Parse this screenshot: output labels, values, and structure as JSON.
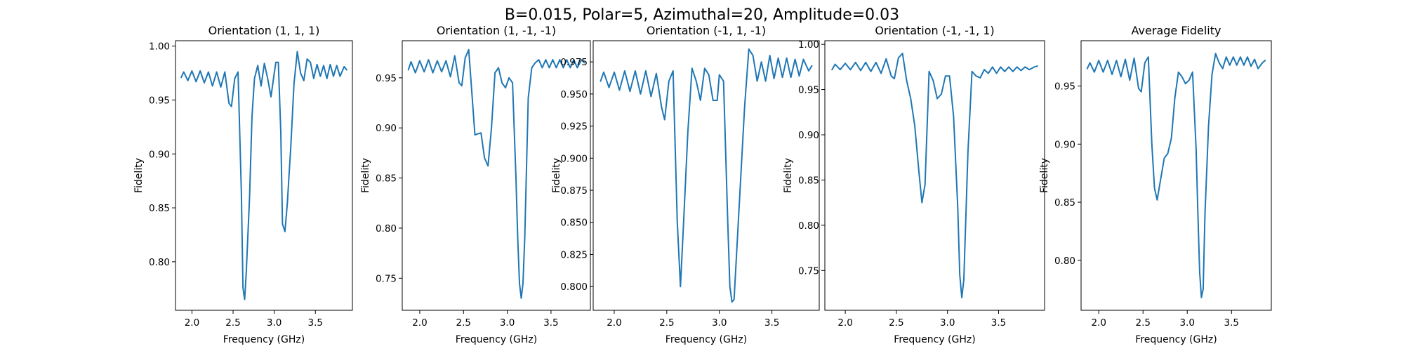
{
  "figure": {
    "suptitle": "B=0.015, Polar=5, Azimuthal=20, Amplitude=0.03"
  },
  "colors": {
    "line": "#1f77b4"
  },
  "chart_data": [
    {
      "type": "line",
      "title": "Orientation (1, 1, 1)",
      "xlabel": "Frequency (GHz)",
      "ylabel": "Fidelity",
      "xlim": [
        1.8,
        3.95
      ],
      "ylim": [
        0.755,
        1.005
      ],
      "xticks": [
        2.0,
        2.5,
        3.0,
        3.5
      ],
      "xtick_labels": [
        "2.0",
        "2.5",
        "3.0",
        "3.5"
      ],
      "yticks": [
        0.8,
        0.85,
        0.9,
        0.95,
        1.0
      ],
      "ytick_labels": [
        "0.80",
        "0.85",
        "0.90",
        "0.95",
        "1.00"
      ],
      "x": [
        1.87,
        1.9,
        1.95,
        2.0,
        2.05,
        2.1,
        2.15,
        2.2,
        2.25,
        2.3,
        2.35,
        2.4,
        2.45,
        2.48,
        2.52,
        2.56,
        2.6,
        2.62,
        2.64,
        2.66,
        2.7,
        2.73,
        2.76,
        2.8,
        2.84,
        2.88,
        2.92,
        2.96,
        3.0,
        3.02,
        3.05,
        3.08,
        3.1,
        3.13,
        3.16,
        3.18,
        3.2,
        3.24,
        3.28,
        3.32,
        3.36,
        3.4,
        3.44,
        3.48,
        3.52,
        3.56,
        3.6,
        3.64,
        3.68,
        3.72,
        3.76,
        3.8,
        3.85,
        3.88
      ],
      "y": [
        0.971,
        0.976,
        0.968,
        0.977,
        0.967,
        0.977,
        0.966,
        0.976,
        0.963,
        0.976,
        0.962,
        0.976,
        0.947,
        0.944,
        0.97,
        0.976,
        0.865,
        0.776,
        0.765,
        0.79,
        0.86,
        0.935,
        0.97,
        0.982,
        0.963,
        0.984,
        0.97,
        0.953,
        0.975,
        0.985,
        0.985,
        0.92,
        0.835,
        0.828,
        0.855,
        0.88,
        0.905,
        0.965,
        0.995,
        0.975,
        0.968,
        0.988,
        0.985,
        0.97,
        0.983,
        0.972,
        0.982,
        0.97,
        0.983,
        0.972,
        0.982,
        0.972,
        0.981,
        0.978
      ]
    },
    {
      "type": "line",
      "title": "Orientation (1, -1, -1)",
      "xlabel": "Frequency (GHz)",
      "ylabel": "Fidelity",
      "xlim": [
        1.8,
        3.95
      ],
      "ylim": [
        0.718,
        0.987
      ],
      "xticks": [
        2.0,
        2.5,
        3.0,
        3.5
      ],
      "xtick_labels": [
        "2.0",
        "2.5",
        "3.0",
        "3.5"
      ],
      "yticks": [
        0.75,
        0.8,
        0.85,
        0.9,
        0.95
      ],
      "ytick_labels": [
        "0.75",
        "0.80",
        "0.85",
        "0.90",
        "0.95"
      ],
      "x": [
        1.87,
        1.9,
        1.95,
        2.0,
        2.05,
        2.1,
        2.15,
        2.2,
        2.25,
        2.3,
        2.35,
        2.4,
        2.45,
        2.48,
        2.52,
        2.56,
        2.6,
        2.63,
        2.66,
        2.7,
        2.74,
        2.78,
        2.82,
        2.86,
        2.9,
        2.94,
        2.98,
        3.02,
        3.06,
        3.1,
        3.12,
        3.14,
        3.16,
        3.18,
        3.2,
        3.24,
        3.28,
        3.32,
        3.36,
        3.4,
        3.44,
        3.48,
        3.52,
        3.56,
        3.6,
        3.64,
        3.68,
        3.72,
        3.76,
        3.8,
        3.85,
        3.88
      ],
      "y": [
        0.958,
        0.966,
        0.955,
        0.967,
        0.956,
        0.968,
        0.955,
        0.967,
        0.956,
        0.967,
        0.951,
        0.972,
        0.945,
        0.942,
        0.97,
        0.978,
        0.93,
        0.893,
        0.894,
        0.895,
        0.87,
        0.862,
        0.9,
        0.955,
        0.96,
        0.945,
        0.94,
        0.95,
        0.945,
        0.85,
        0.79,
        0.745,
        0.73,
        0.745,
        0.79,
        0.93,
        0.96,
        0.965,
        0.968,
        0.96,
        0.968,
        0.96,
        0.968,
        0.96,
        0.968,
        0.96,
        0.968,
        0.96,
        0.968,
        0.96,
        0.968,
        0.965
      ]
    },
    {
      "type": "line",
      "title": "Orientation (-1, 1, -1)",
      "xlabel": "Frequency (GHz)",
      "ylabel": "Fidelity",
      "xlim": [
        1.8,
        3.95
      ],
      "ylim": [
        0.7815,
        0.9915
      ],
      "xticks": [
        2.0,
        2.5,
        3.0,
        3.5
      ],
      "xtick_labels": [
        "2.0",
        "2.5",
        "3.0",
        "3.5"
      ],
      "yticks": [
        0.8,
        0.825,
        0.85,
        0.875,
        0.9,
        0.925,
        0.95,
        0.975
      ],
      "ytick_labels": [
        "0.800",
        "0.825",
        "0.850",
        "0.875",
        "0.900",
        "0.925",
        "0.950",
        "0.975"
      ],
      "x": [
        1.87,
        1.9,
        1.95,
        2.0,
        2.05,
        2.1,
        2.15,
        2.2,
        2.25,
        2.3,
        2.35,
        2.4,
        2.45,
        2.48,
        2.52,
        2.56,
        2.6,
        2.63,
        2.66,
        2.7,
        2.74,
        2.78,
        2.82,
        2.86,
        2.9,
        2.94,
        2.98,
        3.0,
        3.04,
        3.08,
        3.1,
        3.12,
        3.14,
        3.16,
        3.2,
        3.24,
        3.28,
        3.32,
        3.36,
        3.4,
        3.44,
        3.48,
        3.52,
        3.56,
        3.6,
        3.64,
        3.68,
        3.72,
        3.76,
        3.8,
        3.85,
        3.88
      ],
      "y": [
        0.96,
        0.967,
        0.955,
        0.967,
        0.953,
        0.968,
        0.952,
        0.968,
        0.95,
        0.968,
        0.948,
        0.966,
        0.94,
        0.93,
        0.96,
        0.968,
        0.85,
        0.8,
        0.85,
        0.92,
        0.97,
        0.96,
        0.945,
        0.97,
        0.965,
        0.945,
        0.945,
        0.965,
        0.96,
        0.85,
        0.8,
        0.788,
        0.79,
        0.82,
        0.88,
        0.94,
        0.985,
        0.98,
        0.96,
        0.975,
        0.96,
        0.98,
        0.962,
        0.978,
        0.963,
        0.978,
        0.963,
        0.977,
        0.964,
        0.977,
        0.968,
        0.972
      ]
    },
    {
      "type": "line",
      "title": "Orientation (-1, -1, 1)",
      "xlabel": "Frequency (GHz)",
      "ylabel": "Fidelity",
      "xlim": [
        1.8,
        3.95
      ],
      "ylim": [
        0.706,
        1.004
      ],
      "xticks": [
        2.0,
        2.5,
        3.0,
        3.5
      ],
      "xtick_labels": [
        "2.0",
        "2.5",
        "3.0",
        "3.5"
      ],
      "yticks": [
        0.75,
        0.8,
        0.85,
        0.9,
        0.95,
        1.0
      ],
      "ytick_labels": [
        "0.75",
        "0.80",
        "0.85",
        "0.90",
        "0.95",
        "1.00"
      ],
      "x": [
        1.87,
        1.9,
        1.95,
        2.0,
        2.05,
        2.1,
        2.15,
        2.2,
        2.25,
        2.3,
        2.35,
        2.4,
        2.45,
        2.48,
        2.52,
        2.56,
        2.6,
        2.64,
        2.68,
        2.72,
        2.75,
        2.78,
        2.82,
        2.86,
        2.9,
        2.94,
        2.98,
        3.02,
        3.06,
        3.1,
        3.12,
        3.14,
        3.16,
        3.2,
        3.24,
        3.28,
        3.32,
        3.36,
        3.4,
        3.44,
        3.48,
        3.52,
        3.56,
        3.6,
        3.64,
        3.68,
        3.72,
        3.76,
        3.8,
        3.85,
        3.88
      ],
      "y": [
        0.972,
        0.978,
        0.972,
        0.979,
        0.972,
        0.98,
        0.971,
        0.98,
        0.97,
        0.98,
        0.968,
        0.984,
        0.965,
        0.962,
        0.985,
        0.99,
        0.96,
        0.94,
        0.91,
        0.86,
        0.825,
        0.845,
        0.97,
        0.96,
        0.94,
        0.945,
        0.965,
        0.965,
        0.92,
        0.82,
        0.745,
        0.72,
        0.74,
        0.88,
        0.97,
        0.965,
        0.963,
        0.972,
        0.968,
        0.975,
        0.968,
        0.975,
        0.97,
        0.975,
        0.97,
        0.975,
        0.971,
        0.975,
        0.972,
        0.975,
        0.976
      ]
    },
    {
      "type": "line",
      "title": "Average Fidelity",
      "xlabel": "Frequency (GHz)",
      "ylabel": "Fidelity",
      "xlim": [
        1.8,
        3.95
      ],
      "ylim": [
        0.757,
        0.989
      ],
      "xticks": [
        2.0,
        2.5,
        3.0,
        3.5
      ],
      "xtick_labels": [
        "2.0",
        "2.5",
        "3.0",
        "3.5"
      ],
      "yticks": [
        0.8,
        0.85,
        0.9,
        0.95
      ],
      "ytick_labels": [
        "0.80",
        "0.85",
        "0.90",
        "0.95"
      ],
      "x": [
        1.87,
        1.9,
        1.95,
        2.0,
        2.05,
        2.1,
        2.15,
        2.2,
        2.25,
        2.3,
        2.35,
        2.4,
        2.45,
        2.48,
        2.52,
        2.56,
        2.6,
        2.63,
        2.66,
        2.7,
        2.74,
        2.78,
        2.82,
        2.86,
        2.9,
        2.94,
        2.98,
        3.02,
        3.06,
        3.1,
        3.12,
        3.14,
        3.16,
        3.18,
        3.2,
        3.24,
        3.28,
        3.32,
        3.36,
        3.4,
        3.44,
        3.48,
        3.52,
        3.56,
        3.6,
        3.64,
        3.68,
        3.72,
        3.76,
        3.8,
        3.85,
        3.88
      ],
      "y": [
        0.965,
        0.97,
        0.962,
        0.972,
        0.962,
        0.972,
        0.96,
        0.972,
        0.958,
        0.973,
        0.955,
        0.974,
        0.948,
        0.945,
        0.97,
        0.975,
        0.9,
        0.862,
        0.852,
        0.87,
        0.888,
        0.892,
        0.905,
        0.94,
        0.962,
        0.958,
        0.952,
        0.955,
        0.962,
        0.895,
        0.84,
        0.79,
        0.768,
        0.775,
        0.84,
        0.915,
        0.96,
        0.978,
        0.97,
        0.965,
        0.975,
        0.968,
        0.975,
        0.968,
        0.975,
        0.968,
        0.975,
        0.967,
        0.973,
        0.965,
        0.97,
        0.972
      ]
    }
  ]
}
